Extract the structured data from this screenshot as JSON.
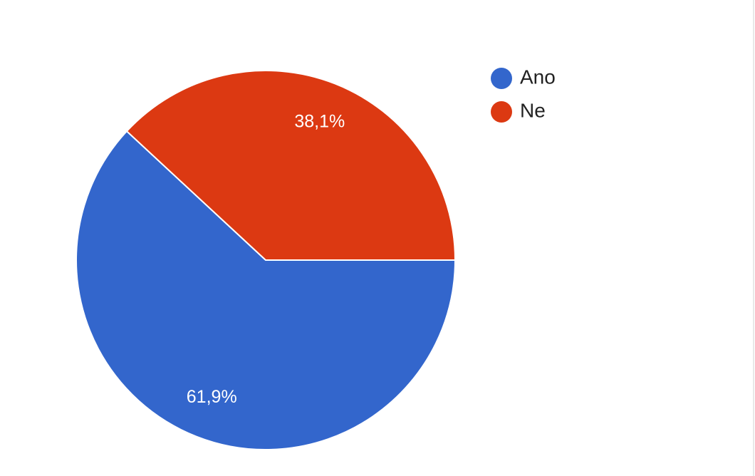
{
  "chart_data": {
    "type": "pie",
    "categories": [
      "Ano",
      "Ne"
    ],
    "values": [
      61.9,
      38.1
    ],
    "value_labels": [
      "61,9%",
      "38,1%"
    ],
    "colors": [
      "#3366cc",
      "#dc3912"
    ],
    "legend": "right"
  }
}
